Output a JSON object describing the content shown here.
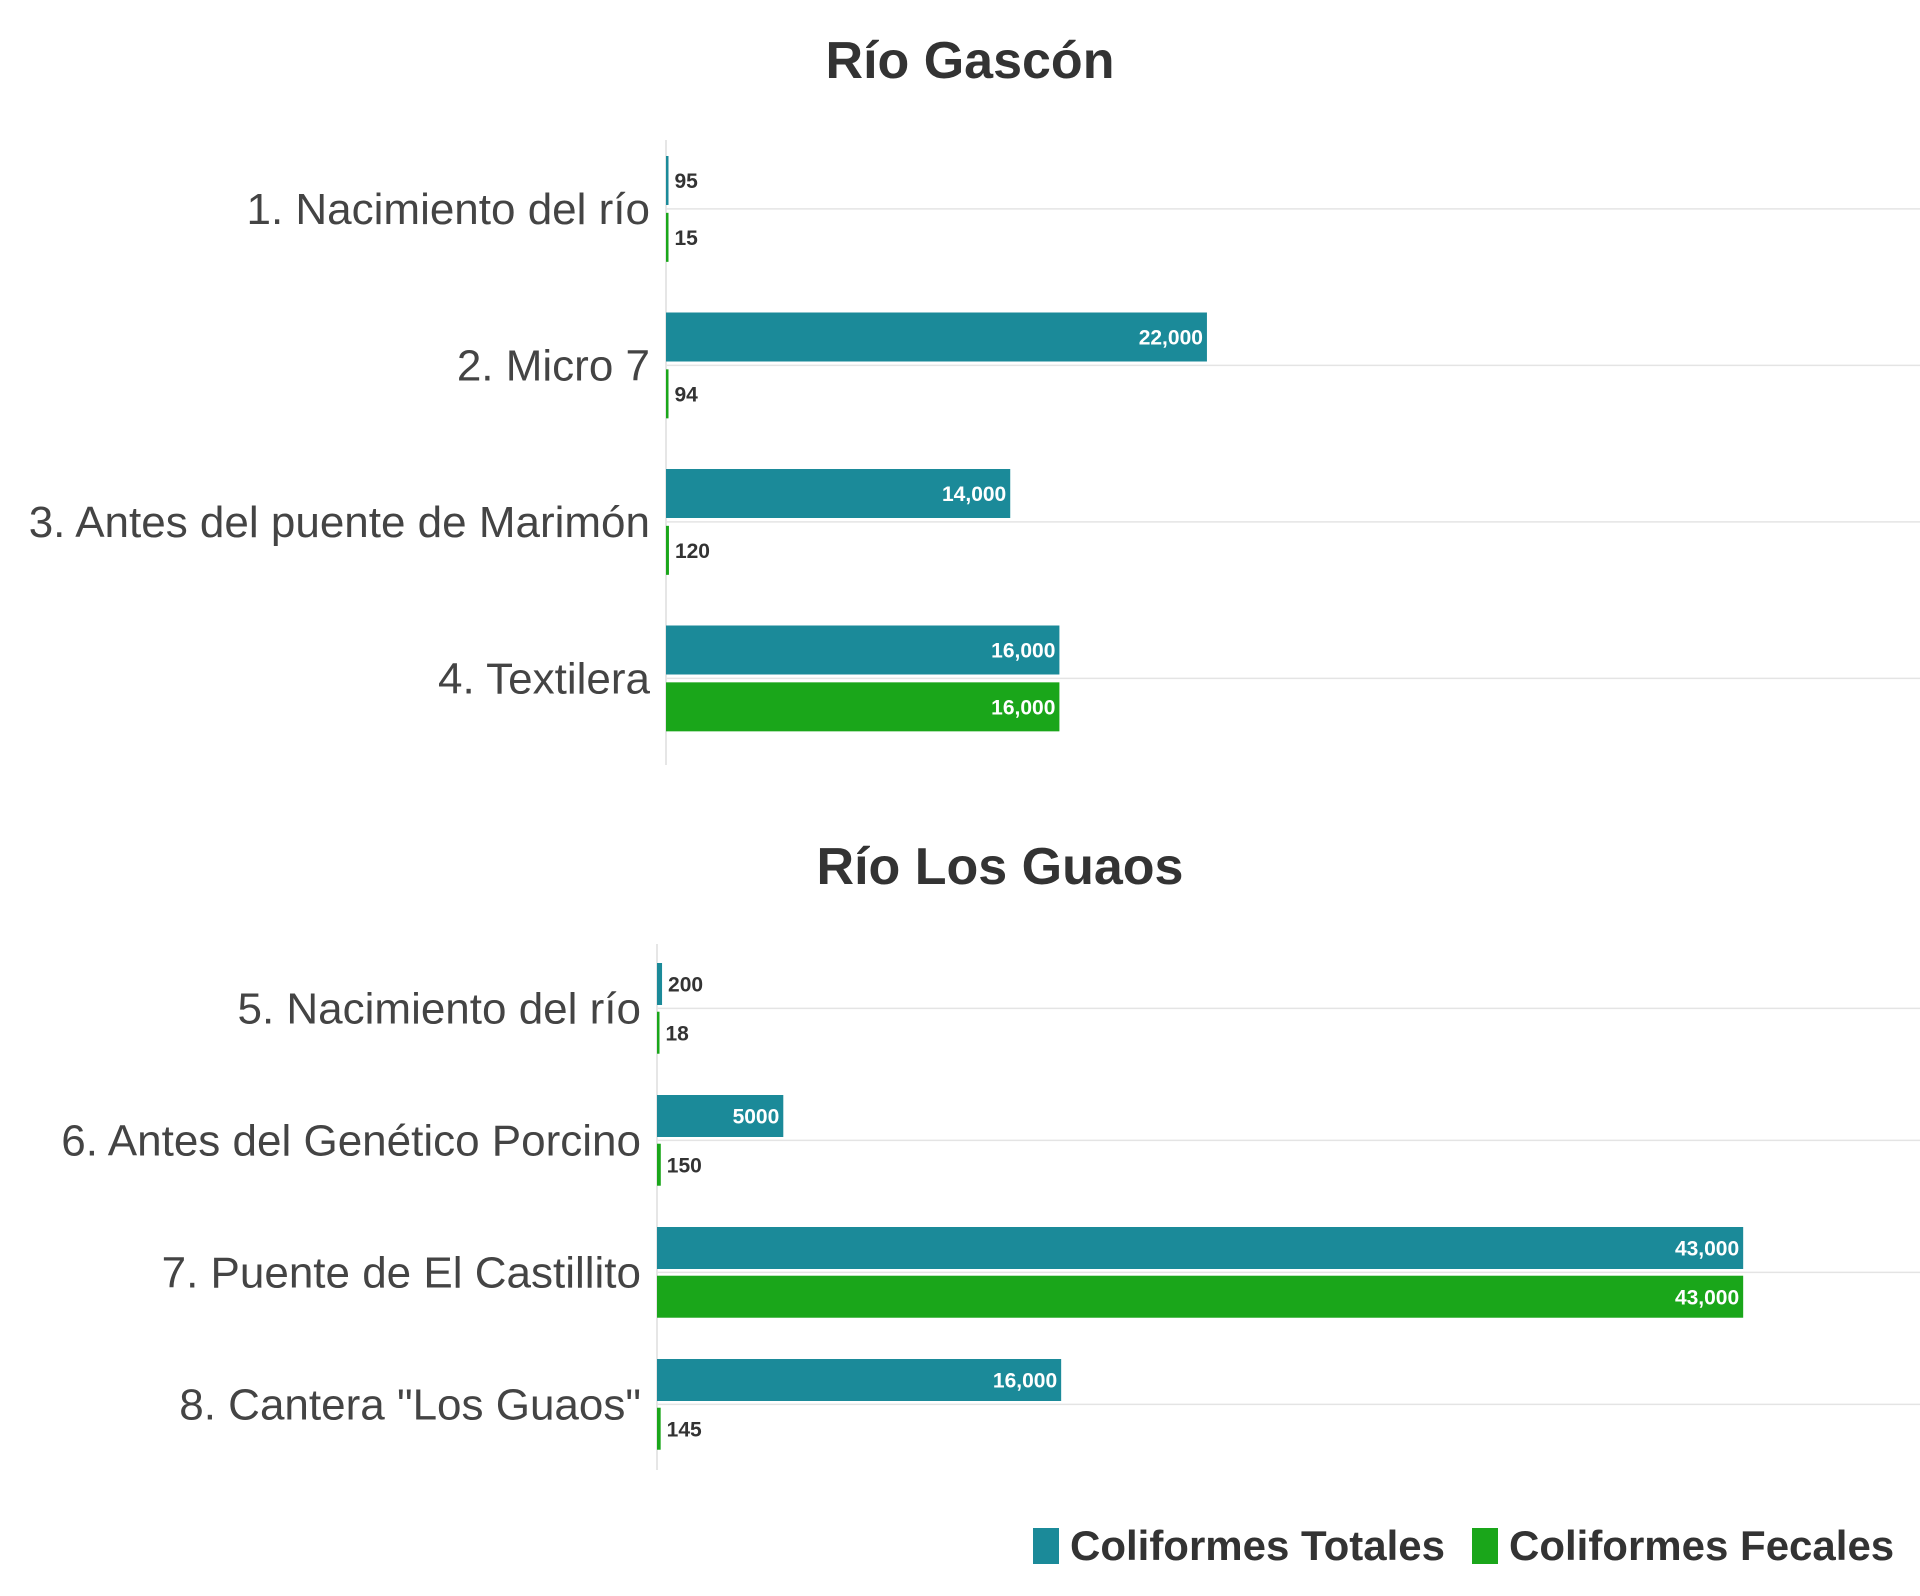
{
  "colors": {
    "coliformes_totales": "#1b8a99",
    "coliformes_fecales": "#1aa61a",
    "axis": "#dddddd",
    "label_dark": "#333333",
    "label_light": "#ffffff"
  },
  "chart_data": [
    {
      "type": "bar",
      "orientation": "horizontal",
      "title": "Río Gascón",
      "categories": [
        "1. Nacimiento del río",
        "2. Micro 7",
        "3. Antes del puente de Marimón",
        "4. Textilera"
      ],
      "series": [
        {
          "name": "Coliformes Totales",
          "values": [
            95,
            22000,
            14000,
            16000
          ],
          "labels": [
            "95",
            "22,000",
            "14,000",
            "16,000"
          ]
        },
        {
          "name": "Coliformes Fecales",
          "values": [
            15,
            94,
            120,
            16000
          ],
          "labels": [
            "15",
            "94",
            "120",
            "16,000"
          ]
        }
      ],
      "xlim": [
        0,
        51000
      ],
      "grid": true
    },
    {
      "type": "bar",
      "orientation": "horizontal",
      "title": "Río Los Guaos",
      "categories": [
        "5. Nacimiento del río",
        "6. Antes del Genético Porcino",
        "7. Puente de El Castillito",
        "8. Cantera \"Los Guaos\""
      ],
      "series": [
        {
          "name": "Coliformes Totales",
          "values": [
            200,
            5000,
            43000,
            16000
          ],
          "labels": [
            "200",
            "5000",
            "43,000",
            "16,000"
          ]
        },
        {
          "name": "Coliformes Fecales",
          "values": [
            18,
            150,
            43000,
            145
          ],
          "labels": [
            "18",
            "150",
            "43,000",
            "145"
          ]
        }
      ],
      "xlim": [
        0,
        50000
      ],
      "grid": true
    }
  ],
  "legend": {
    "placement": "bottom-right",
    "items": [
      {
        "label": "Coliformes Totales",
        "color": "#1b8a99"
      },
      {
        "label": "Coliformes Fecales",
        "color": "#1aa61a"
      }
    ]
  }
}
